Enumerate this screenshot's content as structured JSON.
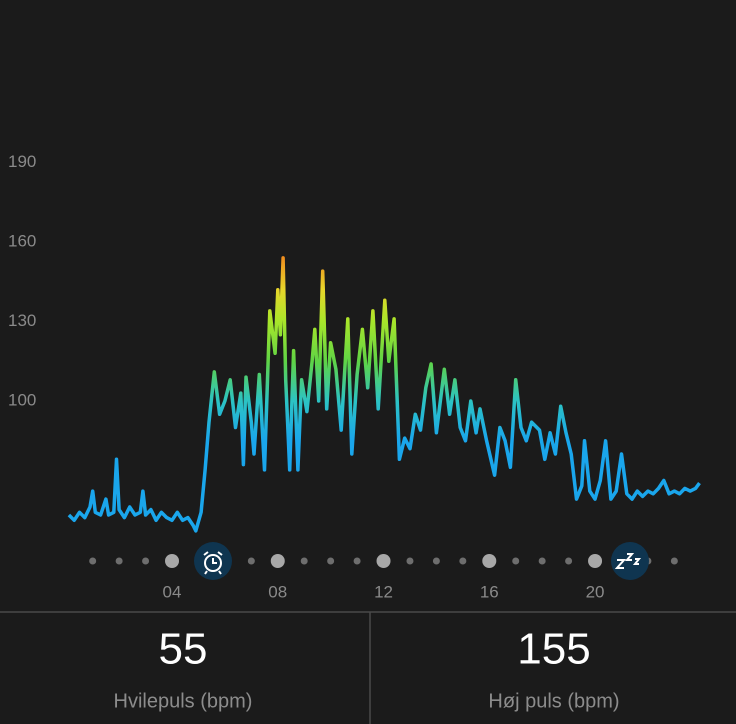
{
  "chart_data": {
    "type": "line",
    "x": [
      0.1,
      0.3,
      0.5,
      0.7,
      0.9,
      1.0,
      1.1,
      1.3,
      1.5,
      1.6,
      1.8,
      1.9,
      2.0,
      2.2,
      2.4,
      2.6,
      2.8,
      2.9,
      3.0,
      3.2,
      3.4,
      3.6,
      3.8,
      4.0,
      4.2,
      4.4,
      4.6,
      4.8,
      4.9,
      5.1,
      5.25,
      5.4,
      5.6,
      5.8,
      6.0,
      6.2,
      6.4,
      6.6,
      6.7,
      6.8,
      7.0,
      7.1,
      7.3,
      7.5,
      7.7,
      7.9,
      8.0,
      8.1,
      8.2,
      8.3,
      8.45,
      8.6,
      8.76,
      8.9,
      9.1,
      9.3,
      9.4,
      9.55,
      9.7,
      9.85,
      10.0,
      10.2,
      10.4,
      10.65,
      10.8,
      11.0,
      11.2,
      11.4,
      11.6,
      11.8,
      12.05,
      12.2,
      12.4,
      12.6,
      12.8,
      13.0,
      13.2,
      13.4,
      13.6,
      13.8,
      14.0,
      14.3,
      14.5,
      14.7,
      14.9,
      15.1,
      15.3,
      15.5,
      15.65,
      15.9,
      16.2,
      16.4,
      16.6,
      16.8,
      17.0,
      17.2,
      17.4,
      17.6,
      17.9,
      18.1,
      18.3,
      18.5,
      18.7,
      18.9,
      19.1,
      19.3,
      19.5,
      19.6,
      19.8,
      20.0,
      20.2,
      20.4,
      20.6,
      20.8,
      21.0,
      21.2,
      21.4,
      21.6,
      21.8,
      22.0,
      22.2,
      22.4,
      22.6,
      22.8,
      23.0,
      23.2,
      23.4,
      23.6,
      23.8,
      23.95
    ],
    "values": [
      57,
      55,
      58,
      56,
      60,
      66,
      58,
      57,
      63,
      57,
      58,
      78,
      59,
      56,
      60,
      57,
      58,
      66,
      57,
      59,
      55,
      58,
      56,
      55,
      58,
      55,
      56,
      53,
      51,
      58,
      74,
      92,
      111,
      95,
      100,
      108,
      90,
      103,
      76,
      109,
      92,
      80,
      110,
      74,
      134,
      118,
      142,
      125,
      154,
      108,
      74,
      119,
      74,
      108,
      96,
      115,
      127,
      100,
      149,
      97,
      122,
      112,
      89,
      131,
      80,
      110,
      127,
      105,
      134,
      97,
      138,
      115,
      131,
      78,
      86,
      82,
      95,
      89,
      105,
      114,
      88,
      112,
      95,
      108,
      90,
      85,
      100,
      88,
      97,
      85,
      72,
      90,
      85,
      75,
      108,
      90,
      85,
      92,
      89,
      78,
      88,
      80,
      98,
      88,
      80,
      63,
      68,
      85,
      66,
      63,
      70,
      85,
      63,
      66,
      80,
      65,
      63,
      66,
      64,
      66,
      65,
      67,
      70,
      65,
      66,
      65,
      67,
      66,
      67,
      69
    ],
    "xlim": [
      0,
      24
    ],
    "xticks": [
      {
        "value": 4,
        "label": "04"
      },
      {
        "value": 8,
        "label": "08"
      },
      {
        "value": 12,
        "label": "12"
      },
      {
        "value": 16,
        "label": "16"
      },
      {
        "value": 20,
        "label": "20"
      }
    ],
    "ylim": [
      40,
      195
    ],
    "yticks": [
      100,
      130,
      160,
      190
    ],
    "color_stops": [
      {
        "value": 85,
        "color": "#1aa6ec"
      },
      {
        "value": 100,
        "color": "#2cc3c4"
      },
      {
        "value": 115,
        "color": "#5fd445"
      },
      {
        "value": 130,
        "color": "#a8e62a"
      },
      {
        "value": 142,
        "color": "#e8d62a"
      },
      {
        "value": 155,
        "color": "#f08a1e"
      }
    ]
  },
  "stats": [
    {
      "value": "55",
      "label": "Hvilepuls (bpm)"
    },
    {
      "value": "155",
      "label": "Høj puls (bpm)"
    }
  ]
}
